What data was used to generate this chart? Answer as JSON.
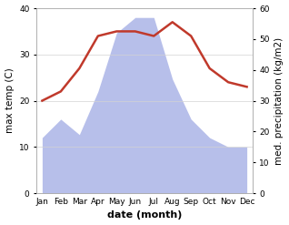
{
  "months": [
    "Jan",
    "Feb",
    "Mar",
    "Apr",
    "May",
    "Jun",
    "Jul",
    "Aug",
    "Sep",
    "Oct",
    "Nov",
    "Dec"
  ],
  "temperature": [
    20,
    22,
    27,
    34,
    35,
    35,
    34,
    37,
    34,
    27,
    24,
    23
  ],
  "precipitation": [
    18,
    24,
    19,
    33,
    52,
    57,
    57,
    37,
    24,
    18,
    15,
    15
  ],
  "temp_color": "#c0392b",
  "precip_color": "#b0b8e8",
  "left_ylim": [
    0,
    40
  ],
  "right_ylim": [
    0,
    60
  ],
  "left_yticks": [
    0,
    10,
    20,
    30,
    40
  ],
  "right_yticks": [
    0,
    10,
    20,
    30,
    40,
    50,
    60
  ],
  "left_ylabel": "max temp (C)",
  "right_ylabel": "med. precipitation (kg/m2)",
  "xlabel": "date (month)",
  "axis_fontsize": 7.5,
  "tick_fontsize": 6.5,
  "xlabel_fontsize": 8
}
